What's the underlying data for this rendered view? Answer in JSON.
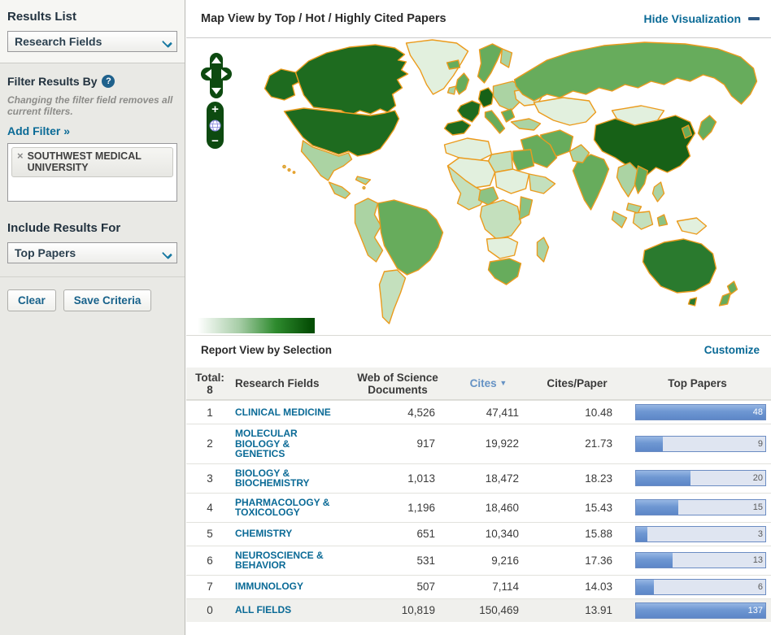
{
  "palette": {
    "link_teal": "#0a6a96",
    "sorted_blue": "#6592c4",
    "map_dark_green": "#1e6b1f",
    "map_darkest_green": "#176117",
    "map_medium_green": "#67ac5c",
    "map_light_green": "#abd3a3",
    "map_border_orange": "#eb9b1d",
    "bar_blue": "#5d87c8"
  },
  "sidebar": {
    "results_list": {
      "label": "Results List",
      "selected": "Research Fields"
    },
    "filter": {
      "label": "Filter Results By",
      "help_glyph": "?",
      "note": "Changing the filter field removes all current filters.",
      "add_filter": "Add Filter »",
      "tag": {
        "remove_glyph": "×",
        "label": "SOUTHWEST MEDICAL UNIVERSITY"
      }
    },
    "include": {
      "label": "Include Results For",
      "selected": "Top Papers"
    },
    "buttons": {
      "clear": "Clear",
      "save": "Save Criteria"
    }
  },
  "map_panel": {
    "title": "Map View by Top / Hot / Highly Cited Papers",
    "hide_link": "Hide Visualization",
    "zoom_in_glyph": "+",
    "zoom_out_glyph": "−"
  },
  "report": {
    "title": "Report View by Selection",
    "customize": "Customize",
    "total_label": "Total:",
    "total_value": "8",
    "columns": {
      "field": "Research Fields",
      "docs": "Web of Science Documents",
      "cites": "Cites",
      "sort_glyph": "▼",
      "cpp": "Cites/Paper",
      "top": "Top Papers"
    },
    "rows": [
      {
        "rank": "1",
        "field": "CLINICAL MEDICINE",
        "docs": "4,526",
        "cites": "47,411",
        "cpp": "10.48",
        "top": "48",
        "bar_pct": 100,
        "full": true
      },
      {
        "rank": "2",
        "field": "MOLECULAR BIOLOGY & GENETICS",
        "docs": "917",
        "cites": "19,922",
        "cpp": "21.73",
        "top": "9",
        "bar_pct": 21
      },
      {
        "rank": "3",
        "field": "BIOLOGY & BIOCHEMISTRY",
        "docs": "1,013",
        "cites": "18,472",
        "cpp": "18.23",
        "top": "20",
        "bar_pct": 42
      },
      {
        "rank": "4",
        "field": "PHARMACOLOGY & TOXICOLOGY",
        "docs": "1,196",
        "cites": "18,460",
        "cpp": "15.43",
        "top": "15",
        "bar_pct": 33
      },
      {
        "rank": "5",
        "field": "CHEMISTRY",
        "docs": "651",
        "cites": "10,340",
        "cpp": "15.88",
        "top": "3",
        "bar_pct": 9
      },
      {
        "rank": "6",
        "field": "NEUROSCIENCE & BEHAVIOR",
        "docs": "531",
        "cites": "9,216",
        "cpp": "17.36",
        "top": "13",
        "bar_pct": 28
      },
      {
        "rank": "7",
        "field": "IMMUNOLOGY",
        "docs": "507",
        "cites": "7,114",
        "cpp": "14.03",
        "top": "6",
        "bar_pct": 14
      },
      {
        "rank": "0",
        "field": "ALL FIELDS",
        "docs": "10,819",
        "cites": "150,469",
        "cpp": "13.91",
        "top": "137",
        "bar_pct": 100,
        "full": true,
        "shaded": true
      }
    ]
  }
}
